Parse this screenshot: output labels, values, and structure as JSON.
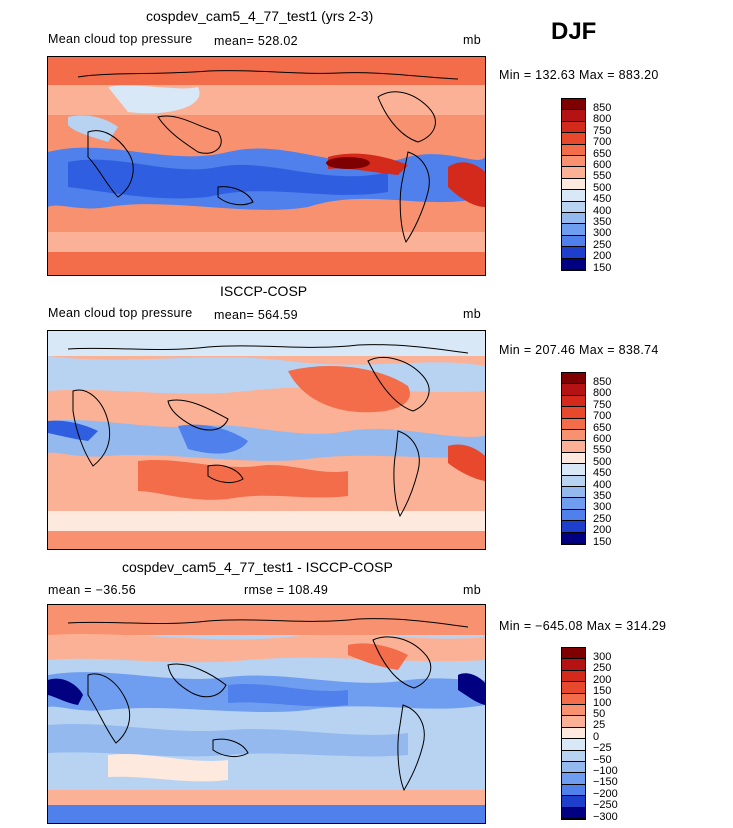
{
  "season": "DJF",
  "colors": {
    "warm": [
      "#fde9de",
      "#fcd0bc",
      "#fbb195",
      "#f8916f",
      "#f46d4b",
      "#e8482b",
      "#d42a1b",
      "#b51213",
      "#7f0000"
    ],
    "cool": [
      "#d8e8f7",
      "#b8d3f2",
      "#93b9ee",
      "#6f9ef0",
      "#4f80eb",
      "#2f5fe0",
      "#1e3fcc",
      "#0b1fa6",
      "#000080"
    ]
  },
  "panels": [
    {
      "title": "cospdev_cam5_4_77_test1 (yrs 2-3)",
      "left_label": "Mean cloud top pressure",
      "mid_label": "mean= 528.02",
      "unit": "mb",
      "stats": "Min = 132.63 Max = 883.20",
      "colorbar": [
        "850",
        "800",
        "750",
        "700",
        "650",
        "600",
        "550",
        "500",
        "450",
        "400",
        "350",
        "300",
        "250",
        "200",
        "150"
      ]
    },
    {
      "title": "ISCCP-COSP",
      "left_label": "Mean cloud top pressure",
      "mid_label": "mean= 564.59",
      "unit": "mb",
      "stats": "Min = 207.46 Max = 838.74",
      "colorbar": [
        "850",
        "800",
        "750",
        "700",
        "650",
        "600",
        "550",
        "500",
        "450",
        "400",
        "350",
        "300",
        "250",
        "200",
        "150"
      ]
    },
    {
      "title": "cospdev_cam5_4_77_test1 - ISCCP-COSP",
      "left_label": "mean = −36.56",
      "mid_label": "rmse = 108.49",
      "unit": "mb",
      "stats": "Min = −645.08 Max = 314.29",
      "colorbar": [
        "300",
        "250",
        "200",
        "150",
        "100",
        "50",
        "25",
        "0",
        "−25",
        "−50",
        "−100",
        "−150",
        "−200",
        "−250",
        "−300"
      ]
    }
  ]
}
